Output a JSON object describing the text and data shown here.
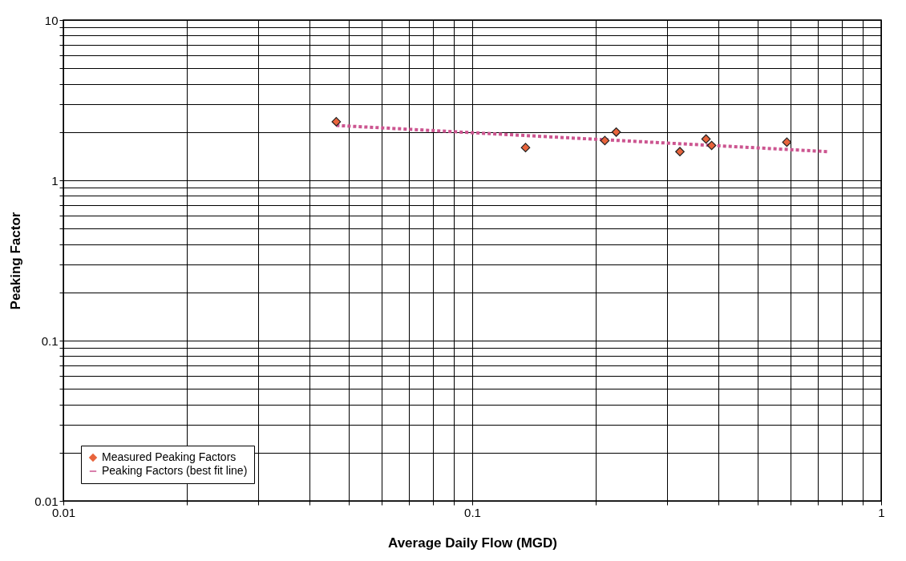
{
  "chart_data": {
    "type": "scatter",
    "xlabel": "Average Daily Flow (MGD)",
    "ylabel": "Peaking Factor",
    "log": "xy",
    "grid": true,
    "legend": "bottom left",
    "xlim": [
      0.01,
      1
    ],
    "ylim": [
      0.01,
      10
    ],
    "xticks": [
      0.01,
      {
        "value": 0.02,
        "label": null
      },
      {
        "value": 0.03,
        "label": null
      },
      {
        "value": 0.04,
        "label": null
      },
      {
        "value": 0.05,
        "label": null
      },
      {
        "value": 0.06,
        "label": null
      },
      {
        "value": 0.07,
        "label": null
      },
      {
        "value": 0.08,
        "label": null
      },
      {
        "value": 0.09,
        "label": null
      },
      0.1,
      {
        "value": 0.2,
        "label": null
      },
      {
        "value": 0.3,
        "label": null
      },
      {
        "value": 0.4,
        "label": null
      },
      {
        "value": 0.5,
        "label": null
      },
      {
        "value": 0.6,
        "label": null
      },
      {
        "value": 0.7,
        "label": null
      },
      {
        "value": 0.8,
        "label": null
      },
      {
        "value": 0.9,
        "label": null
      },
      1
    ],
    "yticks": [
      0.01,
      {
        "value": 0.02,
        "label": null
      },
      {
        "value": 0.03,
        "label": null
      },
      {
        "value": 0.04,
        "label": null
      },
      {
        "value": 0.05,
        "label": null
      },
      {
        "value": 0.06,
        "label": null
      },
      {
        "value": 0.07,
        "label": null
      },
      {
        "value": 0.08,
        "label": null
      },
      {
        "value": 0.09,
        "label": null
      },
      0.1,
      {
        "value": 0.2,
        "label": null
      },
      {
        "value": 0.3,
        "label": null
      },
      {
        "value": 0.4,
        "label": null
      },
      {
        "value": 0.5,
        "label": null
      },
      {
        "value": 0.6,
        "label": null
      },
      {
        "value": 0.7,
        "label": null
      },
      {
        "value": 0.8,
        "label": null
      },
      {
        "value": 0.9,
        "label": null
      },
      1,
      {
        "value": 2,
        "label": null
      },
      {
        "value": 3,
        "label": null
      },
      {
        "value": 4,
        "label": null
      },
      {
        "value": 5,
        "label": null
      },
      {
        "value": 6,
        "label": null
      },
      {
        "value": 7,
        "label": null
      },
      {
        "value": 8,
        "label": null
      },
      {
        "value": 9,
        "label": null
      },
      10
    ],
    "series": [
      {
        "name": "Measured Peaking Factors",
        "marker": "diamond",
        "color": "#e8643c",
        "x": [
          0.0465,
          0.135,
          0.211,
          0.225,
          0.322,
          0.373,
          0.385,
          0.588
        ],
        "values": [
          2.32,
          1.6,
          1.77,
          2.0,
          1.51,
          1.81,
          1.65,
          1.73
        ]
      },
      {
        "name": "Peaking Factors (best fit line)",
        "type": "line",
        "marker": "none",
        "line_style": "dotted",
        "color": "#cc5590",
        "x": [
          0.0465,
          0.741
        ],
        "values": [
          2.2,
          1.51
        ]
      }
    ]
  }
}
